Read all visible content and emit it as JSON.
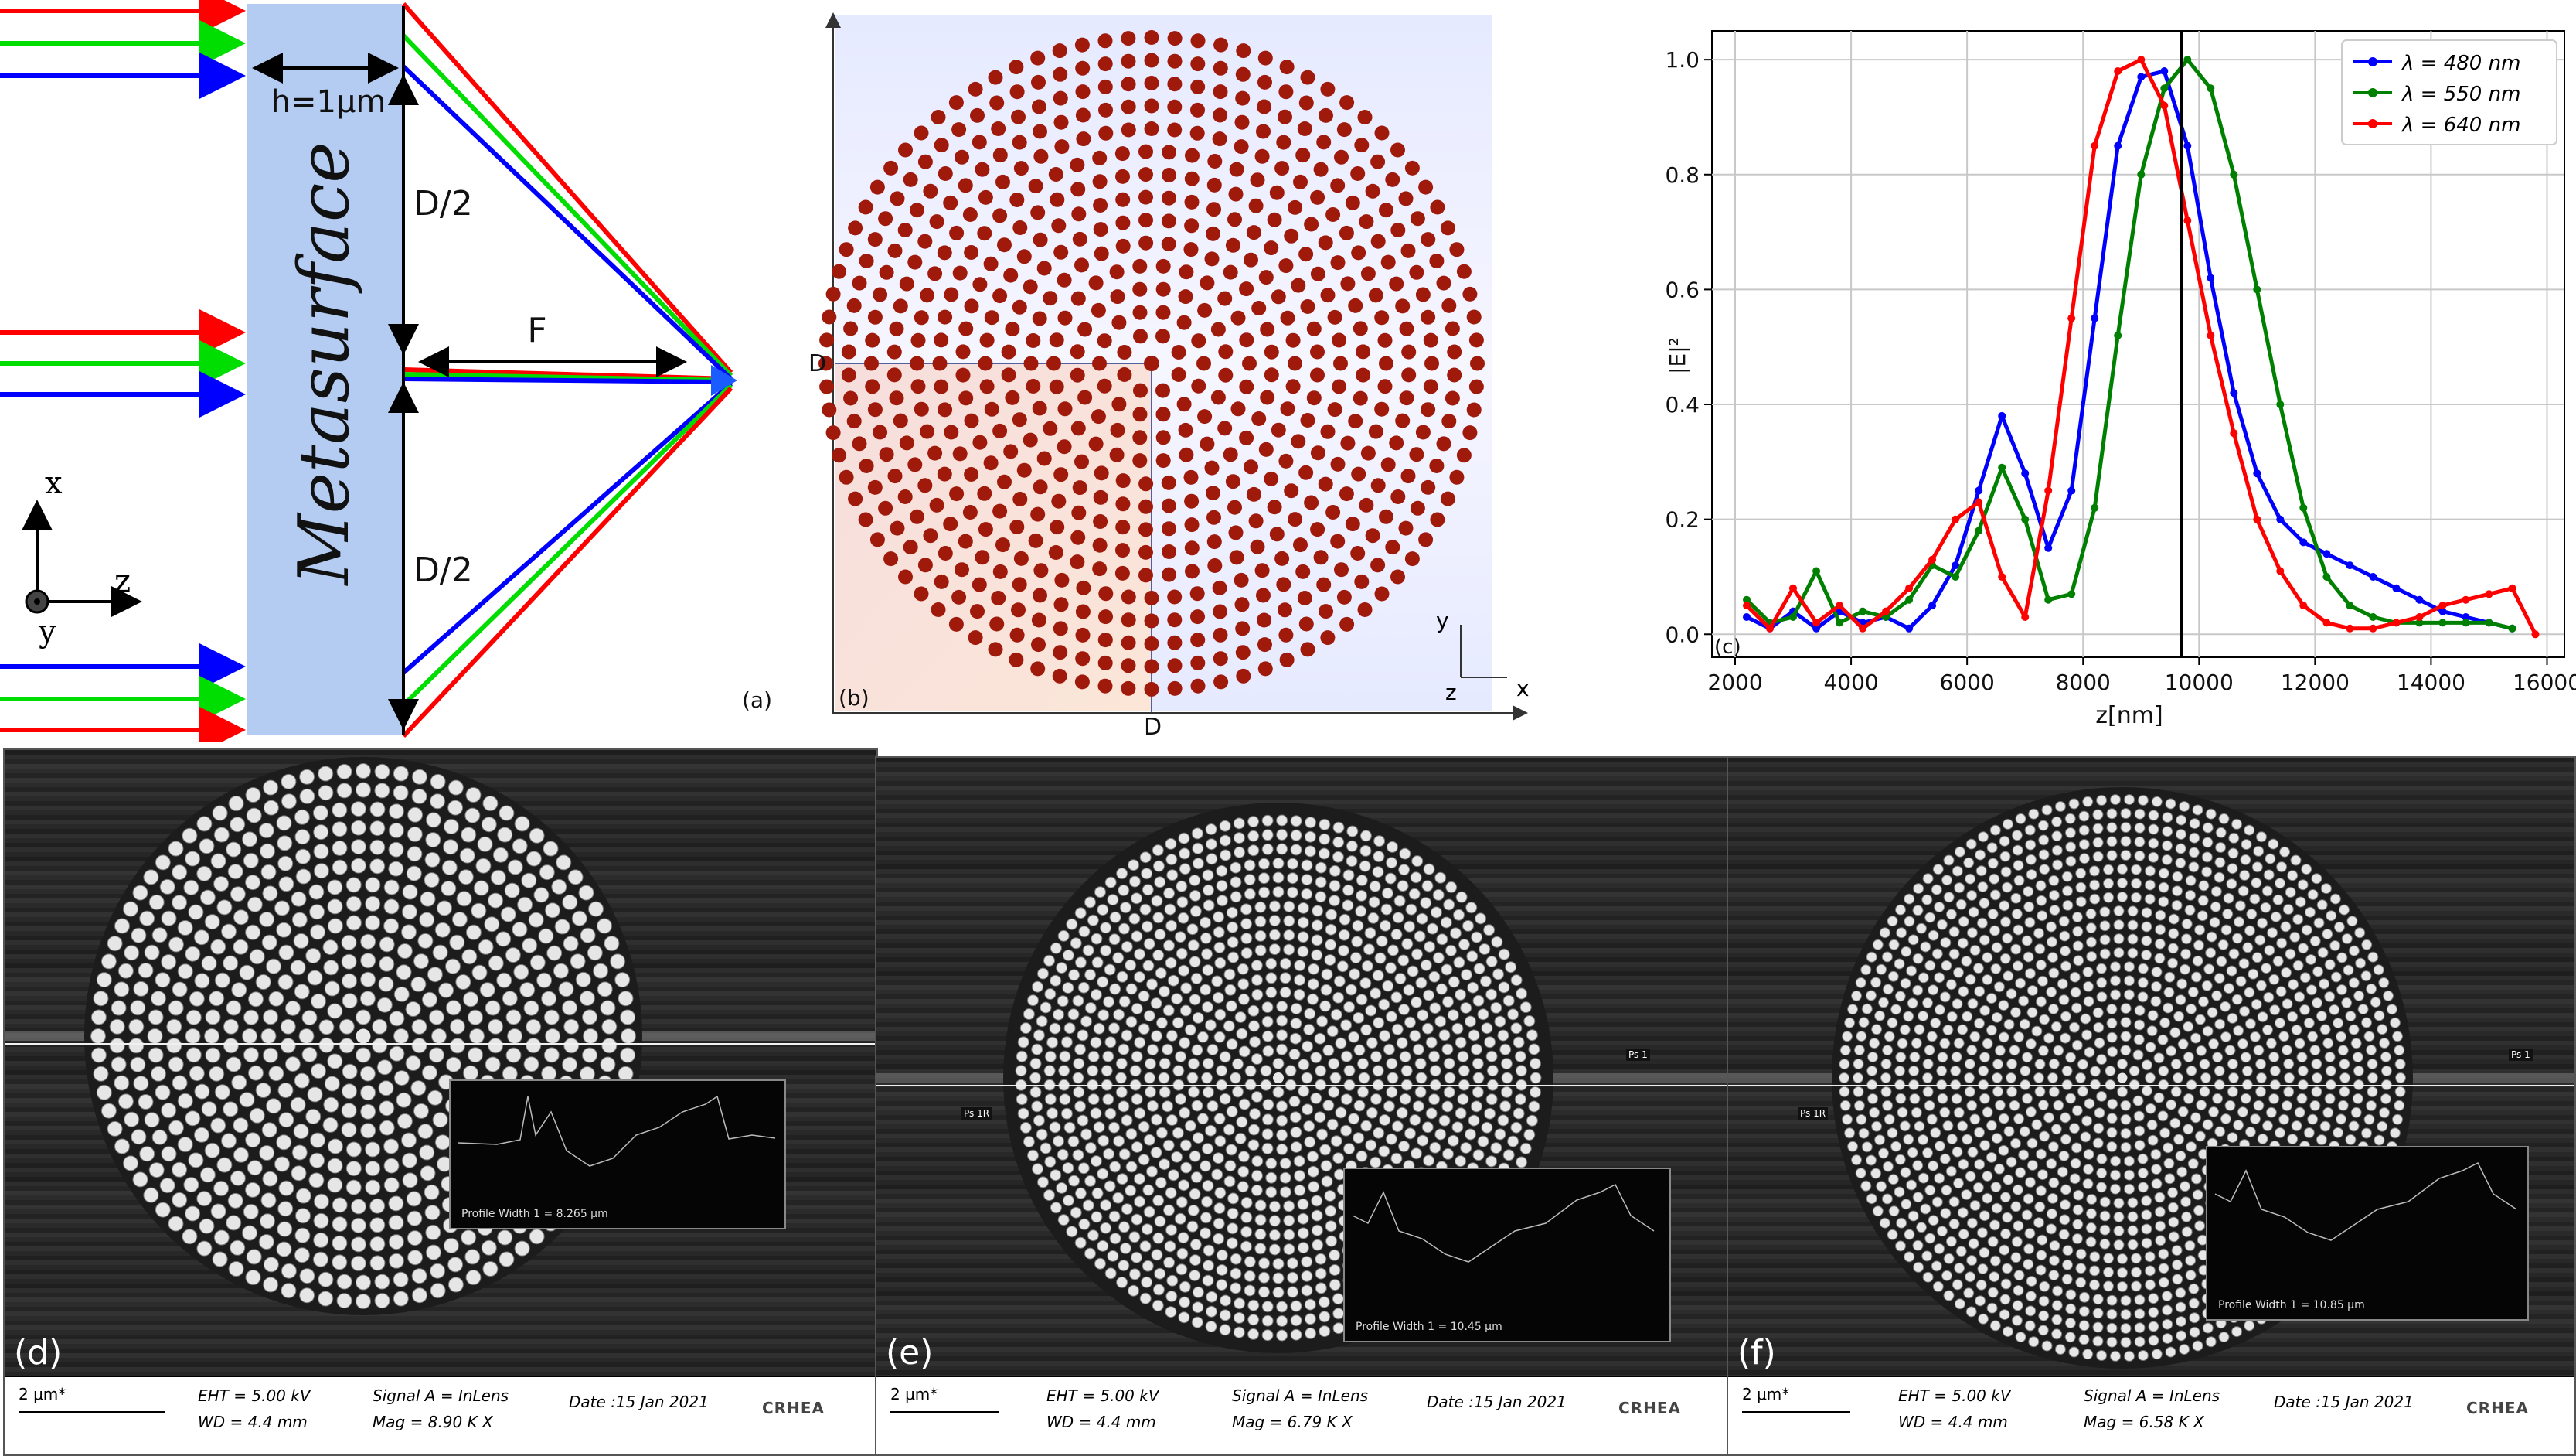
{
  "panel_a": {
    "label": "(a)",
    "h_label": "h=1μm",
    "metasurface_label": "Metasurface",
    "d2_top": "D/2",
    "d2_bottom": "D/2",
    "f_label": "F",
    "axis_x": "x",
    "axis_z": "z",
    "axis_y": "y"
  },
  "panel_b": {
    "label": "(b)",
    "d_left": "D",
    "d_bottom": "D",
    "axis_y": "y",
    "axis_z": "z",
    "axis_x": "x",
    "dot_color": "#a01a0c"
  },
  "panel_c": {
    "label": "(c)",
    "xlabel": "z[nm]",
    "ylabel": "|E|²",
    "legend": [
      "λ = 480 nm",
      "λ = 550 nm",
      "λ = 640 nm"
    ],
    "xticks": [
      "2000",
      "4000",
      "6000",
      "8000",
      "10000",
      "12000",
      "14000",
      "16000"
    ],
    "yticks": [
      "0.0",
      "0.2",
      "0.4",
      "0.6",
      "0.8",
      "1.0"
    ]
  },
  "chart_data": {
    "type": "line",
    "title": "",
    "xlabel": "z[nm]",
    "ylabel": "|E|²",
    "xlim": [
      1600,
      16300
    ],
    "ylim": [
      -0.04,
      1.05
    ],
    "grid": true,
    "legend_position": "top-right",
    "vline": 9700,
    "series": [
      {
        "name": "λ = 480 nm",
        "color": "#0000ff",
        "x": [
          2200,
          2600,
          3000,
          3400,
          3800,
          4200,
          4600,
          5000,
          5400,
          5800,
          6200,
          6600,
          7000,
          7400,
          7800,
          8200,
          8600,
          9000,
          9400,
          9800,
          10200,
          10600,
          11000,
          11400,
          11800,
          12200,
          12600,
          13000,
          13400,
          13800,
          14200,
          14600,
          15000,
          15400
        ],
        "y": [
          0.03,
          0.01,
          0.04,
          0.01,
          0.04,
          0.02,
          0.03,
          0.01,
          0.05,
          0.12,
          0.25,
          0.38,
          0.28,
          0.15,
          0.25,
          0.55,
          0.85,
          0.97,
          0.98,
          0.85,
          0.62,
          0.42,
          0.28,
          0.2,
          0.16,
          0.14,
          0.12,
          0.1,
          0.08,
          0.06,
          0.04,
          0.03,
          0.02,
          0.01
        ]
      },
      {
        "name": "λ = 550 nm",
        "color": "#008000",
        "x": [
          2200,
          2600,
          3000,
          3400,
          3800,
          4200,
          4600,
          5000,
          5400,
          5800,
          6200,
          6600,
          7000,
          7400,
          7800,
          8200,
          8600,
          9000,
          9400,
          9800,
          10200,
          10600,
          11000,
          11400,
          11800,
          12200,
          12600,
          13000,
          13400,
          13800,
          14200,
          14600,
          15000,
          15400
        ],
        "y": [
          0.06,
          0.02,
          0.03,
          0.11,
          0.02,
          0.04,
          0.03,
          0.06,
          0.12,
          0.1,
          0.18,
          0.29,
          0.2,
          0.06,
          0.07,
          0.22,
          0.52,
          0.8,
          0.95,
          1.0,
          0.95,
          0.8,
          0.6,
          0.4,
          0.22,
          0.1,
          0.05,
          0.03,
          0.02,
          0.02,
          0.02,
          0.02,
          0.02,
          0.01
        ]
      },
      {
        "name": "λ = 640 nm",
        "color": "#ff0000",
        "x": [
          2200,
          2600,
          3000,
          3400,
          3800,
          4200,
          4600,
          5000,
          5400,
          5800,
          6200,
          6600,
          7000,
          7400,
          7800,
          8200,
          8600,
          9000,
          9400,
          9800,
          10200,
          10600,
          11000,
          11400,
          11800,
          12200,
          12600,
          13000,
          13400,
          13800,
          14200,
          14600,
          15000,
          15400,
          15800
        ],
        "y": [
          0.05,
          0.01,
          0.08,
          0.02,
          0.05,
          0.01,
          0.04,
          0.08,
          0.13,
          0.2,
          0.23,
          0.1,
          0.03,
          0.25,
          0.55,
          0.85,
          0.98,
          1.0,
          0.92,
          0.72,
          0.52,
          0.35,
          0.2,
          0.11,
          0.05,
          0.02,
          0.01,
          0.01,
          0.02,
          0.03,
          0.05,
          0.06,
          0.07,
          0.08,
          0.0
        ]
      }
    ]
  },
  "sem_d": {
    "label": "(d)",
    "scale": "2 μm*",
    "eht": "EHT = 5.00 kV",
    "wd": "WD = 4.4 mm",
    "signal": "Signal A = InLens",
    "mag": "Mag = 8.90 K X",
    "date": "Date :15 Jan 2021",
    "profile": "Profile Width 1 = 8.265 μm",
    "brand": "CRHEA"
  },
  "sem_e": {
    "label": "(e)",
    "scale": "2 μm*",
    "eht": "EHT = 5.00 kV",
    "wd": "WD = 4.4 mm",
    "signal": "Signal A = InLens",
    "mag": "Mag = 6.79 K X",
    "date": "Date :15 Jan 2021",
    "profile": "Profile Width 1 = 10.45 μm",
    "brand": "CRHEA",
    "ps1": "Ps 1",
    "ps1r": "Ps 1R"
  },
  "sem_f": {
    "label": "(f)",
    "scale": "2 μm*",
    "eht": "EHT = 5.00 kV",
    "wd": "WD = 4.4 mm",
    "signal": "Signal A = InLens",
    "mag": "Mag = 6.58 K X",
    "date": "Date :15 Jan 2021",
    "profile": "Profile Width 1 = 10.85 μm",
    "brand": "CRHEA",
    "ps1": "Ps 1",
    "ps1r": "Ps 1R"
  }
}
